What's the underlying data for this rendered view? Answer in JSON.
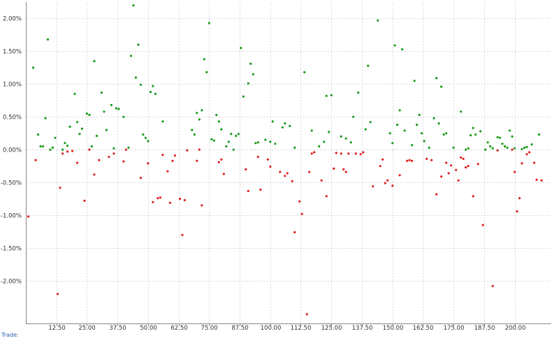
{
  "footer": {
    "label": "Trade:"
  },
  "colors": {
    "positive": "#1a9a1a",
    "negative": "#e02020",
    "grid": "#d8d8d8",
    "axis": "#888888",
    "text": "#333333",
    "footer_label": "#2a5db0"
  },
  "chart_data": {
    "type": "scatter",
    "title": "",
    "xlabel": "",
    "ylabel": "",
    "xlim": [
      0,
      215
    ],
    "ylim": [
      -2.65,
      2.25
    ],
    "x_ticks": [
      12.5,
      25,
      37.5,
      50,
      62.5,
      75,
      87.5,
      100,
      112.5,
      125,
      137.5,
      150,
      162.5,
      175,
      187.5,
      200
    ],
    "x_tick_labels": [
      "12.50",
      "25.00",
      "37.50",
      "50.00",
      "62.50",
      "75.00",
      "87.50",
      "100.00",
      "112.50",
      "125.00",
      "137.50",
      "150.00",
      "162.50",
      "175.00",
      "187.50",
      "200.00"
    ],
    "y_ticks": [
      2.0,
      1.5,
      1.0,
      0.5,
      0.0,
      -0.5,
      -1.0,
      -1.5,
      -2.0
    ],
    "y_tick_labels": [
      "2.00%",
      "1.50%",
      "1.00%",
      "0.50%",
      "0.00%",
      "-0.50%",
      "-1.00%",
      "-1.50%",
      "-2.00%"
    ],
    "grid": true,
    "legend": "none",
    "series": [
      {
        "color": "#1a9a1a",
        "x": [
          3,
          5,
          6,
          7,
          8,
          9,
          10,
          11,
          12,
          15,
          16,
          17,
          18,
          20,
          21,
          22,
          23,
          25,
          26,
          27,
          28,
          29,
          31,
          32,
          33,
          35,
          36,
          37,
          38,
          40,
          42,
          43,
          44,
          45,
          46,
          47,
          48,
          49,
          50,
          51,
          52,
          53,
          56,
          68,
          69,
          70,
          71,
          72,
          73,
          74,
          75,
          76,
          77,
          78,
          79,
          80,
          82,
          83,
          84,
          85,
          86,
          87,
          88,
          89,
          91,
          92,
          93,
          94,
          95,
          98,
          100,
          101,
          102,
          105,
          106,
          108,
          110,
          114,
          117,
          120,
          122,
          123,
          124,
          125,
          129,
          131,
          133,
          134,
          136,
          139,
          140,
          141,
          144,
          149,
          150,
          151,
          152,
          153,
          154,
          155,
          158,
          159,
          160,
          161,
          162,
          163,
          165,
          167,
          168,
          169,
          170,
          171,
          172,
          175,
          178,
          180,
          181,
          182,
          183,
          184,
          186,
          188,
          189,
          190,
          191,
          193,
          194,
          195,
          196,
          197,
          198,
          199,
          200,
          203,
          204,
          205,
          207,
          210
        ],
        "y": [
          1.25,
          0.23,
          0.05,
          0.05,
          0.48,
          1.68,
          0.0,
          0.03,
          0.18,
          0.0,
          0.1,
          0.06,
          0.35,
          0.85,
          0.42,
          0.24,
          0.32,
          0.55,
          0.53,
          0.05,
          1.35,
          0.21,
          0.87,
          0.58,
          0.3,
          0.68,
          0.02,
          0.63,
          0.62,
          0.5,
          0.03,
          1.43,
          2.2,
          1.1,
          1.6,
          0.99,
          0.23,
          0.18,
          0.13,
          0.88,
          0.97,
          0.85,
          0.43,
          0.3,
          0.23,
          0.56,
          0.46,
          0.6,
          1.38,
          1.18,
          1.93,
          0.16,
          0.14,
          0.53,
          0.43,
          0.31,
          0.05,
          0.12,
          0.24,
          0.0,
          0.21,
          0.24,
          1.55,
          0.81,
          1.01,
          1.31,
          1.15,
          0.1,
          0.11,
          0.15,
          0.12,
          0.43,
          0.09,
          0.34,
          0.4,
          0.36,
          0.03,
          1.18,
          0.29,
          0.05,
          0.12,
          0.82,
          0.27,
          0.83,
          0.2,
          0.17,
          0.11,
          0.5,
          0.87,
          0.31,
          1.28,
          0.42,
          1.97,
          0.25,
          0.1,
          1.59,
          0.38,
          0.6,
          1.53,
          0.29,
          0.07,
          1.05,
          0.38,
          0.53,
          0.25,
          0.13,
          0.03,
          0.48,
          1.09,
          0.4,
          0.96,
          0.23,
          0.25,
          0.03,
          0.58,
          0.0,
          0.02,
          0.22,
          0.33,
          0.23,
          0.28,
          0.0,
          0.11,
          0.05,
          0.02,
          0.19,
          0.18,
          0.09,
          0.05,
          0.03,
          0.29,
          0.2,
          0.02,
          0.01,
          0.03,
          0.04,
          0.08,
          0.23
        ]
      },
      {
        "color": "#e02020",
        "x": [
          1,
          4,
          13,
          14,
          15,
          17,
          19,
          21,
          24,
          26,
          28,
          30,
          34,
          36,
          40,
          41,
          47,
          50,
          52,
          54,
          55,
          56,
          58,
          59,
          60,
          61,
          63,
          64,
          65,
          66,
          70,
          71,
          72,
          79,
          80,
          81,
          90,
          91,
          95,
          96,
          99,
          100,
          104,
          106,
          107,
          109,
          110,
          112,
          113,
          115,
          116,
          117,
          118,
          121,
          123,
          126,
          127,
          129,
          130,
          131,
          132,
          135,
          137,
          138,
          142,
          145,
          146,
          147,
          148,
          150,
          153,
          156,
          157,
          158,
          164,
          166,
          168,
          170,
          172,
          173,
          174,
          176,
          177,
          178,
          179,
          180,
          181,
          183,
          185,
          187,
          191,
          193,
          199,
          200,
          201,
          202,
          203,
          205,
          206,
          208,
          209,
          211
        ],
        "y": [
          -1.02,
          -0.16,
          -2.2,
          -0.58,
          -0.06,
          -0.03,
          -0.02,
          -0.2,
          -0.78,
          0.0,
          -0.38,
          -0.16,
          -0.11,
          -0.06,
          -0.18,
          0.0,
          -0.43,
          -0.21,
          -0.8,
          -0.74,
          -0.73,
          -0.08,
          -0.33,
          -0.81,
          -0.17,
          -0.09,
          -0.75,
          -1.3,
          -0.77,
          -0.01,
          -0.17,
          0.0,
          -0.85,
          -0.19,
          -0.15,
          -0.37,
          -0.3,
          -0.63,
          -0.11,
          -0.61,
          -0.15,
          -0.26,
          -0.34,
          -0.4,
          -0.36,
          -0.48,
          -1.26,
          -0.79,
          -0.98,
          -2.51,
          -0.34,
          -0.06,
          -0.04,
          -0.47,
          -0.71,
          -0.29,
          -0.05,
          -0.06,
          -0.3,
          -0.34,
          -0.06,
          -0.06,
          -0.07,
          -0.04,
          -0.56,
          -0.25,
          -0.15,
          -0.51,
          -0.47,
          -0.55,
          -0.39,
          -0.17,
          -0.16,
          -0.17,
          -0.14,
          -0.16,
          -0.68,
          -0.41,
          -0.2,
          -0.36,
          -0.24,
          -0.31,
          -0.47,
          -0.12,
          -0.14,
          -0.27,
          -0.25,
          -0.71,
          -0.22,
          -1.15,
          -2.08,
          -0.01,
          -0.0,
          -0.34,
          -0.94,
          -0.74,
          -0.21,
          -0.07,
          -0.04,
          -0.2,
          -0.46,
          -0.47
        ]
      }
    ]
  }
}
